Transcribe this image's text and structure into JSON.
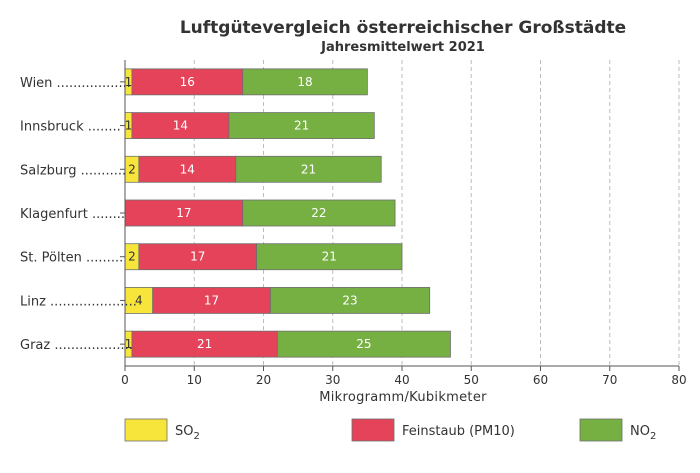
{
  "chart_data": {
    "type": "bar",
    "orientation": "horizontal",
    "stacked": true,
    "title": "Luftgütevergleich österreichischer Großstädte",
    "subtitle": "Jahresmittelwert 2021",
    "xlabel": "Mikrogramm/Kubikmeter",
    "xlim": [
      0,
      80
    ],
    "xticks": [
      "0",
      "10",
      "20",
      "30",
      "40",
      "50",
      "60",
      "70",
      "80"
    ],
    "grid": "vertical dashed",
    "legend_placement": "bottom",
    "categories": [
      "Wien",
      "Innsbruck",
      "Salzburg",
      "Klagenfurt",
      "St. Pölten",
      "Linz",
      "Graz"
    ],
    "category_labels": [
      "Wien ..................",
      "Innsbruck ........",
      "Salzburg ...........",
      "Klagenfurt ........",
      "St. Pölten .........",
      "Linz .....................",
      "Graz ..................."
    ],
    "series": [
      {
        "name": "SO",
        "name_sub": "2",
        "color": "#f7e53b",
        "label_color": "#333333",
        "values": [
          1,
          1,
          2,
          0,
          2,
          4,
          1
        ],
        "labels": [
          "1",
          "1",
          "2",
          "",
          "2",
          "4",
          "1"
        ]
      },
      {
        "name": "Feinstaub (PM10)",
        "name_sub": "",
        "color": "#e5435a",
        "label_color": "#ffffff",
        "values": [
          16,
          14,
          14,
          17,
          17,
          17,
          21
        ],
        "labels": [
          "16",
          "14",
          "14",
          "17",
          "17",
          "17",
          "21"
        ]
      },
      {
        "name": "NO",
        "name_sub": "2",
        "color": "#76b043",
        "label_color": "#ffffff",
        "values": [
          18,
          21,
          21,
          22,
          21,
          23,
          25
        ],
        "labels": [
          "18",
          "21",
          "21",
          "22",
          "21",
          "23",
          "25"
        ]
      }
    ]
  }
}
